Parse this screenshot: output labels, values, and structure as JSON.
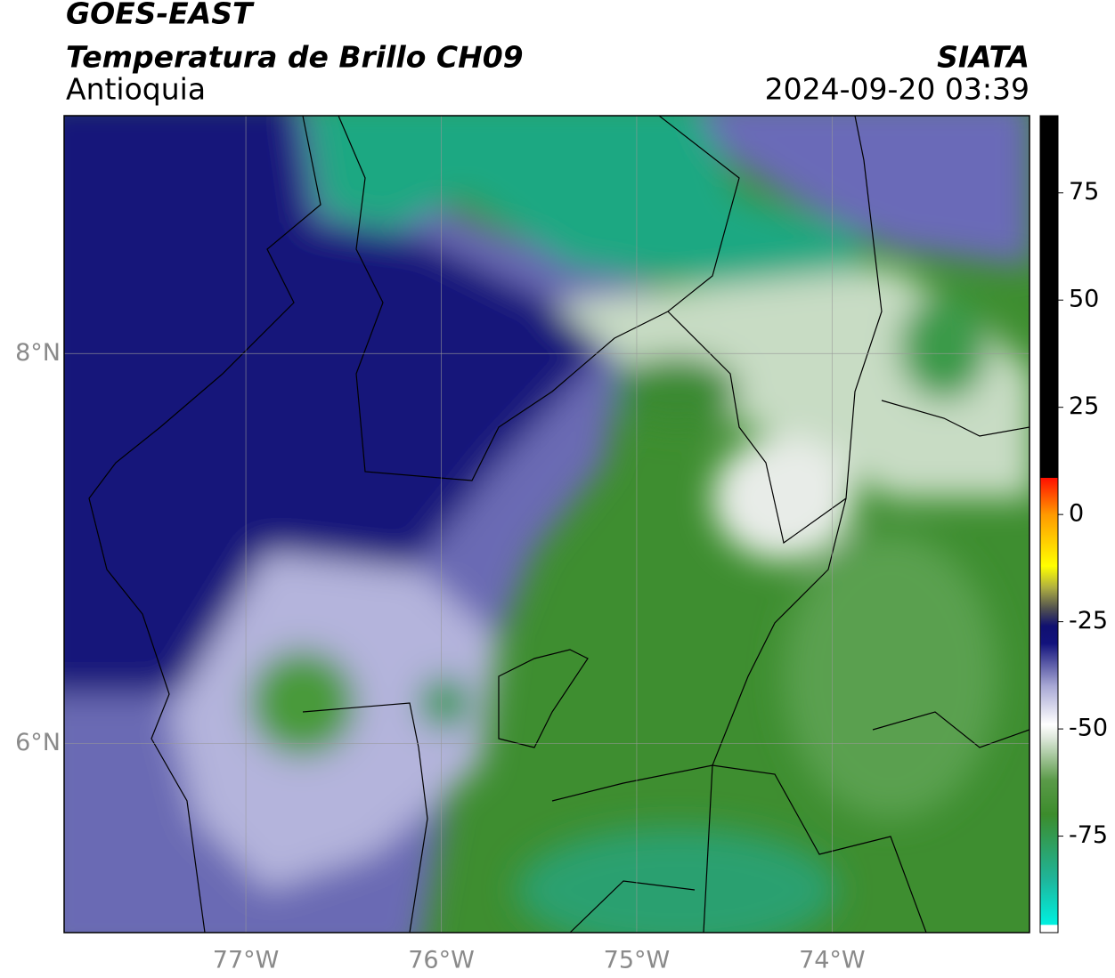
{
  "chart_data": {
    "type": "map",
    "title": "GOES-EAST",
    "subtitle": "Temperatura de Brillo CH09",
    "region": "Antioquia",
    "source": "SIATA",
    "timestamp": "2024-09-20 03:39",
    "xlim": [
      -77.93,
      -72.99
    ],
    "ylim": [
      5.03,
      9.22
    ],
    "xticks": [
      {
        "value": -77,
        "label": "77°W"
      },
      {
        "value": -76,
        "label": "76°W"
      },
      {
        "value": -75,
        "label": "75°W"
      },
      {
        "value": -74,
        "label": "74°W"
      }
    ],
    "yticks": [
      {
        "value": 6,
        "label": "6°N"
      },
      {
        "value": 8,
        "label": "8°N"
      }
    ],
    "grid": true,
    "colorbar": {
      "lim": [
        -97.5,
        93
      ],
      "ticks": [
        75,
        50,
        25,
        0,
        -25,
        -50,
        -75
      ],
      "stops": [
        {
          "value": -97.5,
          "color": "#ffffff"
        },
        {
          "value": -95.8,
          "color": "#ffffff"
        },
        {
          "value": -95.6,
          "color": "#00f0e0"
        },
        {
          "value": -85,
          "color": "#1fb59a"
        },
        {
          "value": -70,
          "color": "#3c8c2c"
        },
        {
          "value": -62,
          "color": "#5a9a48"
        },
        {
          "value": -52,
          "color": "#dfe9dc"
        },
        {
          "value": -49,
          "color": "#ffffff"
        },
        {
          "value": -40,
          "color": "#a8a8d4"
        },
        {
          "value": -30,
          "color": "#12127c"
        },
        {
          "value": -26,
          "color": "#101070"
        },
        {
          "value": -22,
          "color": "#505050"
        },
        {
          "value": -17,
          "color": "#b0b040"
        },
        {
          "value": -12,
          "color": "#ffff00"
        },
        {
          "value": 0,
          "color": "#ff9900"
        },
        {
          "value": 8.5,
          "color": "#ff1000"
        },
        {
          "value": 8.6,
          "color": "#000000"
        },
        {
          "value": 93,
          "color": "#000000"
        }
      ]
    }
  }
}
